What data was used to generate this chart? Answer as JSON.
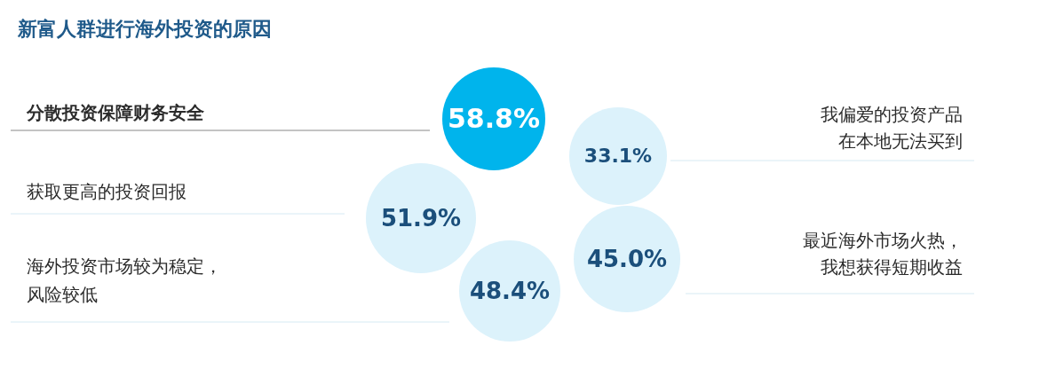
{
  "chart_data": {
    "type": "other",
    "title": "新富人群进行海外投资的原因",
    "categories": [
      "分散投资保障财务安全",
      "获取更高的投资回报",
      "海外投资市场较为稳定，风险较低",
      "最近海外市场火热，我想获得短期收益",
      "我偏爱的投资产品在本地无法买到"
    ],
    "values": [
      58.8,
      51.9,
      48.4,
      45.0,
      33.1
    ],
    "value_labels": [
      "58.8%",
      "51.9%",
      "48.4%",
      "45.0%",
      "33.1%"
    ],
    "colors": [
      "#00b4ec",
      "#dcf2fb",
      "#dcf2fb",
      "#dcf2fb",
      "#dcf2fb"
    ]
  }
}
